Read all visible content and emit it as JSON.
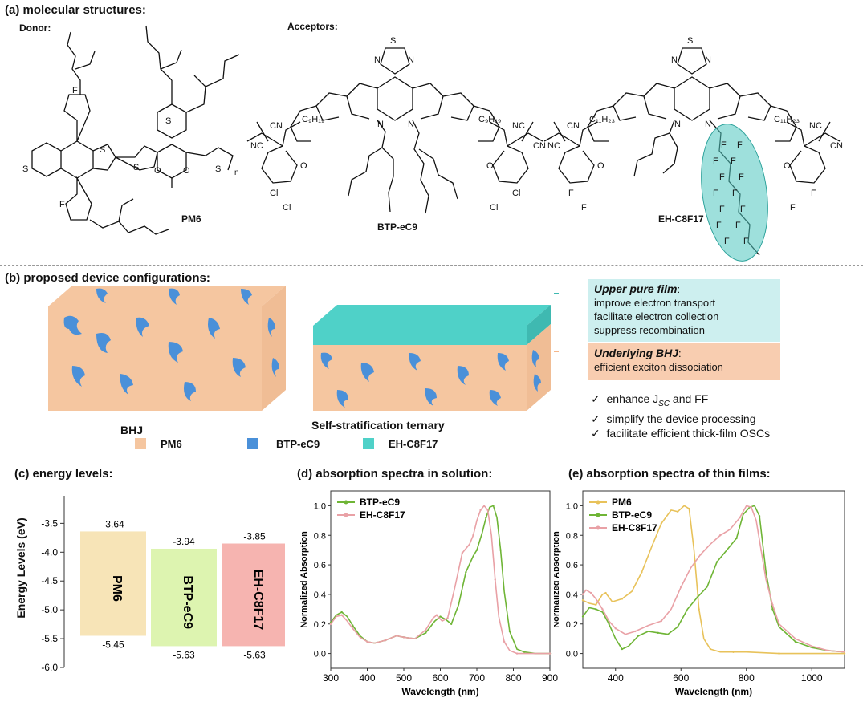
{
  "panel_a": {
    "title": "(a) molecular structures:",
    "donor_label": "Donor:",
    "acceptors_label": "Acceptors:",
    "names": [
      "PM6",
      "BTP-eC9",
      "EH-C8F17"
    ],
    "subscript_n": "n",
    "atom_labels": {
      "S": "S",
      "F": "F",
      "N": "N",
      "O": "O",
      "Cl": "Cl",
      "CN": "CN",
      "NC": "NC",
      "c9h19": "C9H19",
      "c11h23": "C11H23"
    }
  },
  "panel_b": {
    "title": "(b) proposed device configurations:",
    "bhj_label": "BHJ",
    "ternary_label": "Self-stratification ternary",
    "upper": {
      "heading": "Upper pure film",
      "colon": ":",
      "lines": [
        "improve electron transport",
        "facilitate electron collection",
        "suppress recombination"
      ]
    },
    "under": {
      "heading": "Underlying BHJ",
      "colon": ":",
      "lines": [
        "efficient exciton dissociation"
      ]
    },
    "checks": [
      "enhance J",
      "and FF",
      "simplify the device processing",
      "facilitate efficient thick-film OSCs"
    ],
    "check_jsc_sub": "SC",
    "check_mark": "✓",
    "legend": [
      "PM6",
      "BTP-eC9",
      "EH-C8F17"
    ],
    "colors": {
      "pm6": "#F5C6A0",
      "btp": "#4A90D9",
      "eh": "#4FD1C8",
      "upper_box": "#CDEFEF",
      "under_box": "#F8CDB0"
    }
  },
  "panel_c": {
    "title": "(c) energy levels:",
    "ylabel": "Energy Levels (eV)",
    "chart_data": {
      "type": "bar",
      "categories": [
        "PM6",
        "BTP-eC9",
        "EH-C8F17"
      ],
      "lumo": [
        -3.64,
        -3.94,
        -3.85
      ],
      "homo": [
        -5.45,
        -5.63,
        -5.63
      ],
      "lumo_labels": [
        "-3.64",
        "-3.94",
        "-3.85"
      ],
      "homo_labels": [
        "-5.45",
        "-5.63",
        "-5.63"
      ],
      "ylim": [
        -6.0,
        -3.3
      ],
      "yticks": [
        "-3.5",
        "-4.0",
        "-4.5",
        "-5.0",
        "-5.5",
        "-6.0"
      ],
      "colors": [
        "#F7E4B7",
        "#DDF4B0",
        "#F6B4B0"
      ]
    }
  },
  "panel_d": {
    "title": "(d) absorption spectra in solution:",
    "chart_data": {
      "type": "line",
      "xlabel": "Wavelength (nm)",
      "ylabel": "Normalized Absorption",
      "xlim": [
        300,
        900
      ],
      "ylim": [
        -0.1,
        1.1
      ],
      "xticks": [
        "300",
        "400",
        "500",
        "600",
        "700",
        "800",
        "900"
      ],
      "yticks": [
        "0.0",
        "0.2",
        "0.4",
        "0.6",
        "0.8",
        "1.0"
      ],
      "series": [
        {
          "name": "BTP-eC9",
          "color": "#6FB536",
          "x": [
            300,
            315,
            330,
            345,
            360,
            380,
            400,
            420,
            450,
            480,
            500,
            530,
            560,
            585,
            600,
            615,
            630,
            650,
            670,
            690,
            700,
            715,
            725,
            735,
            745,
            755,
            765,
            775,
            790,
            810,
            830,
            860,
            900
          ],
          "y": [
            0.21,
            0.26,
            0.28,
            0.25,
            0.19,
            0.12,
            0.08,
            0.07,
            0.09,
            0.12,
            0.11,
            0.1,
            0.14,
            0.22,
            0.25,
            0.23,
            0.2,
            0.33,
            0.55,
            0.66,
            0.7,
            0.82,
            0.92,
            0.99,
            1.0,
            0.92,
            0.7,
            0.42,
            0.15,
            0.03,
            0.01,
            0.0,
            0.0
          ]
        },
        {
          "name": "EH-C8F17",
          "color": "#E9A1A6",
          "x": [
            300,
            315,
            330,
            345,
            360,
            380,
            400,
            420,
            450,
            480,
            500,
            530,
            560,
            580,
            590,
            605,
            620,
            640,
            660,
            680,
            690,
            700,
            710,
            720,
            730,
            740,
            750,
            760,
            775,
            790,
            810,
            860,
            900
          ],
          "y": [
            0.2,
            0.25,
            0.26,
            0.22,
            0.17,
            0.11,
            0.08,
            0.07,
            0.09,
            0.12,
            0.11,
            0.1,
            0.16,
            0.24,
            0.26,
            0.22,
            0.24,
            0.45,
            0.68,
            0.74,
            0.8,
            0.9,
            0.97,
            1.0,
            0.97,
            0.8,
            0.5,
            0.25,
            0.08,
            0.02,
            0.0,
            0.0,
            0.0
          ]
        }
      ]
    }
  },
  "panel_e": {
    "title": "(e) absorption spectra of thin films:",
    "chart_data": {
      "type": "line",
      "xlabel": "Wavelength (nm)",
      "ylabel": "Normalized Absorption",
      "xlim": [
        300,
        1100
      ],
      "ylim": [
        -0.1,
        1.1
      ],
      "xticks": [
        "400",
        "600",
        "800",
        "1000"
      ],
      "yticks": [
        "0.0",
        "0.2",
        "0.4",
        "0.6",
        "0.8",
        "1.0"
      ],
      "series": [
        {
          "name": "PM6",
          "color": "#E8C25A",
          "x": [
            300,
            320,
            340,
            360,
            370,
            390,
            420,
            450,
            480,
            510,
            540,
            570,
            590,
            610,
            625,
            640,
            655,
            670,
            690,
            720,
            760,
            800,
            900,
            1000,
            1100
          ],
          "y": [
            0.36,
            0.34,
            0.33,
            0.4,
            0.41,
            0.35,
            0.37,
            0.42,
            0.55,
            0.72,
            0.88,
            0.97,
            0.96,
            1.0,
            0.98,
            0.7,
            0.3,
            0.1,
            0.03,
            0.01,
            0.01,
            0.01,
            0.0,
            0.0,
            0.0
          ]
        },
        {
          "name": "BTP-eC9",
          "color": "#6FB536",
          "x": [
            300,
            320,
            340,
            360,
            380,
            400,
            420,
            440,
            470,
            500,
            530,
            560,
            590,
            620,
            650,
            680,
            710,
            740,
            770,
            790,
            810,
            825,
            840,
            860,
            880,
            900,
            950,
            1000,
            1050,
            1100
          ],
          "y": [
            0.25,
            0.31,
            0.3,
            0.28,
            0.2,
            0.1,
            0.03,
            0.05,
            0.12,
            0.15,
            0.14,
            0.13,
            0.18,
            0.3,
            0.38,
            0.45,
            0.62,
            0.7,
            0.78,
            0.94,
            0.99,
            1.0,
            0.93,
            0.55,
            0.3,
            0.18,
            0.08,
            0.04,
            0.02,
            0.01
          ]
        },
        {
          "name": "EH-C8F17",
          "color": "#E9A1A6",
          "x": [
            300,
            310,
            325,
            340,
            360,
            380,
            400,
            430,
            460,
            500,
            540,
            570,
            600,
            630,
            660,
            690,
            720,
            750,
            780,
            800,
            815,
            830,
            845,
            860,
            880,
            900,
            950,
            1000,
            1050,
            1100
          ],
          "y": [
            0.4,
            0.43,
            0.41,
            0.37,
            0.3,
            0.22,
            0.17,
            0.13,
            0.15,
            0.19,
            0.22,
            0.3,
            0.45,
            0.58,
            0.67,
            0.74,
            0.8,
            0.84,
            0.92,
            1.0,
            0.99,
            0.9,
            0.7,
            0.5,
            0.33,
            0.2,
            0.1,
            0.05,
            0.02,
            0.01
          ]
        }
      ]
    }
  }
}
